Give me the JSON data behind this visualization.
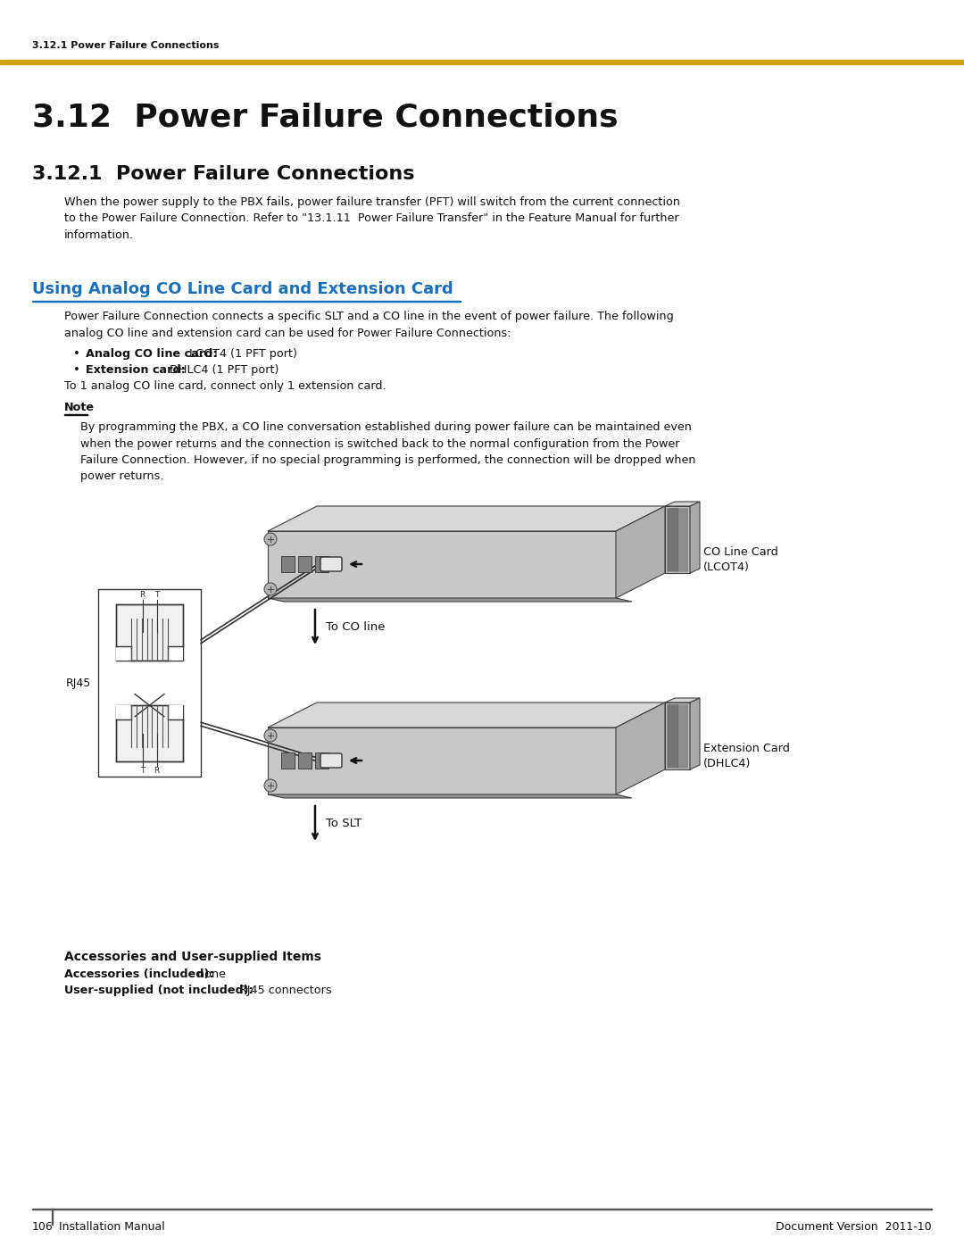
{
  "bg_color": "#ffffff",
  "header_text": "3.12.1 Power Failure Connections",
  "header_bar_color": "#D4A017",
  "title_main": "3.12  Power Failure Connections",
  "title_sub": "3.12.1  Power Failure Connections",
  "section_color": "#1a6fba",
  "section_title": "Using Analog CO Line Card and Extension Card",
  "body_text_1": "When the power supply to the PBX fails, power failure transfer (PFT) will switch from the current connection\nto the Power Failure Connection. Refer to \"13.1.11  Power Failure Transfer\" in the Feature Manual for further\ninformation.",
  "body_text_2": "Power Failure Connection connects a specific SLT and a CO line in the event of power failure. The following\nanalog CO line and extension card can be used for Power Failure Connections:",
  "bullet1_bold": "Analog CO line card:",
  "bullet1_normal": " LCOT4 (1 PFT port)",
  "bullet2_bold": "Extension card:",
  "bullet2_normal": " DHLC4 (1 PFT port)",
  "body_text_3": "To 1 analog CO line card, connect only 1 extension card.",
  "note_title": "Note",
  "note_body": "By programming the PBX, a CO line conversation established during power failure can be maintained even\nwhen the power returns and the connection is switched back to the normal configuration from the Power\nFailure Connection. However, if no special programming is performed, the connection will be dropped when\npower returns.",
  "accessories_title": "Accessories and User-supplied Items",
  "accessories_1_bold": "Accessories (included):",
  "accessories_1_normal": " none",
  "accessories_2_bold": "User-supplied (not included):",
  "accessories_2_normal": " RJ45 connectors",
  "footer_left_num": "106",
  "footer_left_text": "Installation Manual",
  "footer_right": "Document Version  2011-10",
  "label_co": "CO Line Card\n(LCOT4)",
  "label_ext": "Extension Card\n(DHLC4)",
  "label_co_line": "To CO line",
  "label_slt": "To SLT"
}
